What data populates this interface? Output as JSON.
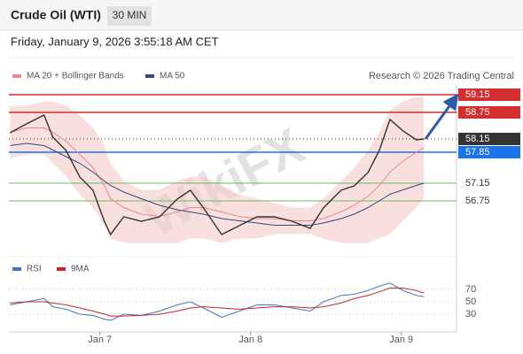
{
  "header": {
    "title": "Crude Oil (WTI)",
    "timeframe": "30 MIN",
    "timestamp": "Friday, January 9, 2026 3:55:18 AM CET"
  },
  "attribution": "Research © 2026 Trading Central",
  "watermark": "WikiFX",
  "chart_data": [
    {
      "type": "line",
      "x": [
        -14.3,
        -11.7,
        -8.9,
        -7.5,
        -5.4,
        -3.2,
        -1.1,
        0.7,
        1.7,
        3.8,
        6.6,
        9.5,
        12.3,
        14.4,
        16.5,
        19.4,
        22.2,
        25.0,
        27.8,
        30.6,
        33.5,
        35.6,
        38.4,
        40.5,
        42.7,
        44.5,
        46.2,
        48.3,
        50.4,
        51.6
      ],
      "values": [
        58.29,
        58.49,
        58.69,
        58.19,
        57.89,
        57.29,
        56.99,
        56.29,
        55.99,
        56.39,
        56.29,
        56.39,
        56.79,
        56.99,
        56.59,
        55.99,
        56.19,
        56.39,
        56.39,
        56.29,
        56.13,
        56.59,
        56.99,
        57.09,
        57.39,
        57.89,
        58.59,
        58.33,
        58.13,
        58.15
      ],
      "color": "#333333",
      "series": [
        {
          "name": "MA 20 + Bollinger Bands",
          "color": "#e88a8a",
          "values": [
            58.3,
            58.4,
            58.4,
            58.3,
            58.1,
            57.8,
            57.5,
            57.1,
            56.8,
            56.6,
            56.45,
            56.4,
            56.5,
            56.6,
            56.6,
            56.5,
            56.4,
            56.35,
            56.35,
            56.3,
            56.3,
            56.35,
            56.5,
            56.65,
            56.85,
            57.1,
            57.4,
            57.65,
            57.85,
            57.95
          ]
        },
        {
          "name": "MA 50",
          "color": "#34497a",
          "values": [
            58.0,
            58.05,
            58.0,
            57.9,
            57.75,
            57.6,
            57.4,
            57.2,
            57.1,
            56.95,
            56.8,
            56.65,
            56.55,
            56.5,
            56.45,
            56.35,
            56.3,
            56.25,
            56.2,
            56.2,
            56.2,
            56.25,
            56.35,
            56.45,
            56.6,
            56.75,
            56.9,
            57.0,
            57.1,
            57.15
          ]
        }
      ],
      "bands": {
        "color": "#f6c9c9",
        "upper": [
          58.9,
          58.9,
          59.0,
          59.0,
          58.9,
          58.7,
          58.4,
          58.0,
          57.6,
          57.2,
          57.0,
          57.0,
          57.2,
          57.3,
          57.3,
          57.1,
          56.9,
          56.8,
          56.7,
          56.6,
          56.6,
          56.8,
          57.2,
          57.5,
          57.9,
          58.3,
          58.8,
          59.0,
          59.1,
          59.1
        ],
        "lower": [
          57.7,
          57.8,
          57.8,
          57.6,
          57.3,
          56.9,
          56.6,
          56.2,
          55.9,
          55.8,
          55.8,
          55.8,
          55.8,
          55.9,
          55.9,
          55.8,
          55.9,
          55.9,
          56.0,
          56.0,
          56.0,
          55.9,
          55.8,
          55.8,
          55.8,
          55.9,
          56.0,
          56.3,
          56.6,
          56.8
        ]
      },
      "levels": [
        {
          "value": 59.15,
          "color": "#d32f2f",
          "box": true
        },
        {
          "value": 58.75,
          "color": "#d32f2f",
          "box": true
        },
        {
          "value": 58.15,
          "color": "#333333",
          "box": true
        },
        {
          "value": 57.85,
          "color": "#1a73e8",
          "box": true
        },
        {
          "value": 57.15,
          "color": "#6bb86b",
          "box": false
        },
        {
          "value": 56.75,
          "color": "#6bb86b",
          "box": false
        }
      ],
      "xlim": [
        -14.5,
        56.8
      ],
      "ylim": [
        55.59,
        59.35
      ],
      "xticks": [
        {
          "value": 0,
          "label": "Jan 7"
        },
        {
          "value": 24,
          "label": "Jan 8"
        },
        {
          "value": 48,
          "label": "Jan 9"
        }
      ]
    },
    {
      "type": "line",
      "x": [
        -14.3,
        -11.7,
        -8.9,
        -7.5,
        -5.4,
        -3.2,
        -1.1,
        0.7,
        1.7,
        3.8,
        6.6,
        9.5,
        12.3,
        14.4,
        16.5,
        19.4,
        22.2,
        25.0,
        27.8,
        30.6,
        33.5,
        35.6,
        38.4,
        40.5,
        42.7,
        44.5,
        46.2,
        48.3,
        50.4,
        51.6
      ],
      "series": [
        {
          "name": "RSI",
          "color": "#4a6fc9",
          "values": [
            45,
            50,
            55,
            42,
            38,
            30,
            28,
            22,
            20,
            30,
            28,
            35,
            45,
            50,
            40,
            25,
            35,
            45,
            45,
            40,
            35,
            50,
            60,
            62,
            68,
            75,
            80,
            68,
            60,
            58
          ]
        },
        {
          "name": "9MA",
          "color": "#c62828",
          "values": [
            48,
            50,
            50,
            48,
            45,
            40,
            35,
            30,
            27,
            27,
            28,
            30,
            35,
            40,
            42,
            40,
            38,
            40,
            42,
            42,
            40,
            42,
            48,
            55,
            60,
            66,
            72,
            72,
            68,
            64
          ]
        }
      ],
      "xlim": [
        -14.5,
        56.8
      ],
      "ylim": [
        8.6,
        87
      ],
      "yticks": [
        70,
        50,
        30
      ]
    }
  ]
}
